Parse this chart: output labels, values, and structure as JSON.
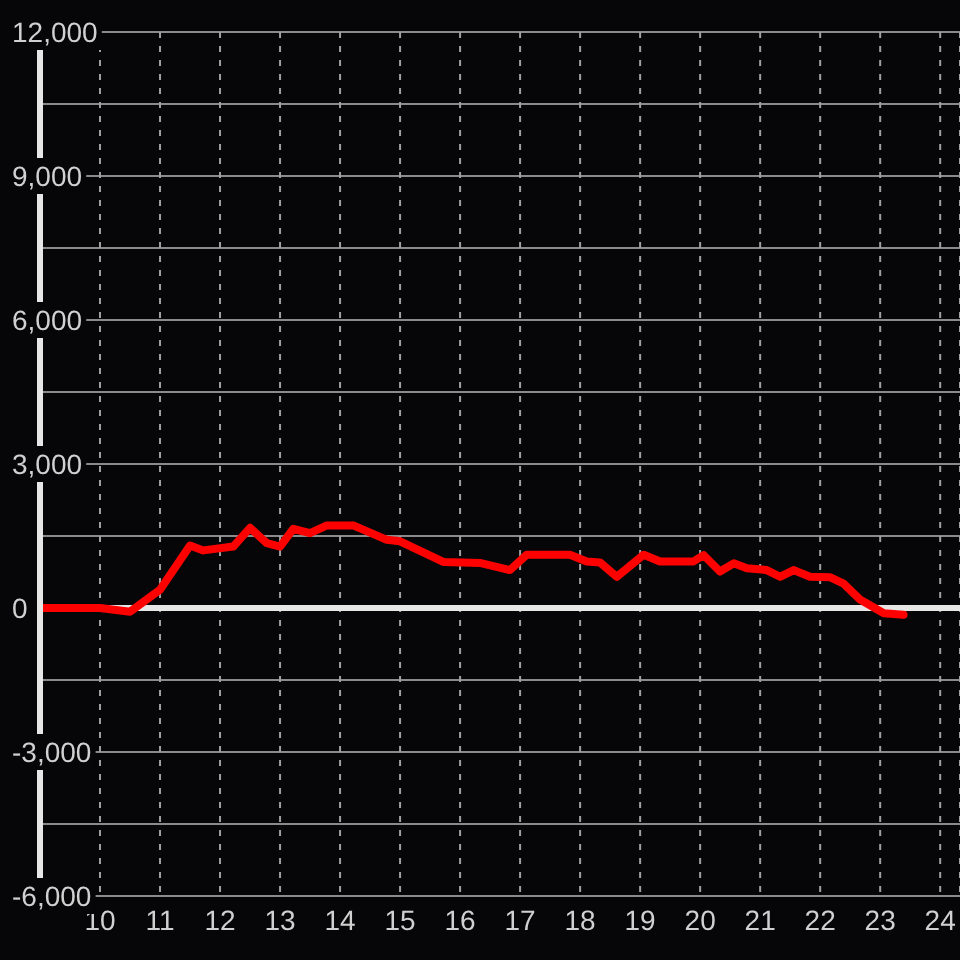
{
  "chart_data": {
    "type": "line",
    "x": [
      9,
      10,
      10.5,
      11,
      11.5,
      11.72,
      12.22,
      12.5,
      12.78,
      13,
      13.22,
      13.5,
      13.78,
      14.22,
      14.78,
      15,
      15.72,
      16.33,
      16.83,
      17.11,
      17.83,
      18.11,
      18.33,
      18.61,
      19.06,
      19.33,
      19.89,
      20.06,
      20.33,
      20.56,
      20.78,
      21.11,
      21.33,
      21.56,
      21.83,
      22.17,
      22.39,
      22.67,
      23.06,
      23.39
    ],
    "series": [
      {
        "color": "#ff0000",
        "values": [
          0,
          0,
          -80,
          380,
          1300,
          1200,
          1280,
          1670,
          1350,
          1280,
          1650,
          1560,
          1720,
          1720,
          1420,
          1390,
          960,
          940,
          790,
          1110,
          1110,
          970,
          950,
          650,
          1110,
          970,
          970,
          1100,
          760,
          930,
          830,
          790,
          650,
          790,
          650,
          640,
          510,
          170,
          -110,
          -140
        ]
      }
    ],
    "xlim": [
      9,
      24.33
    ],
    "xticks": [
      10,
      11,
      12,
      13,
      14,
      15,
      16,
      17,
      18,
      19,
      20,
      21,
      22,
      23,
      24
    ],
    "ylim": [
      -6000,
      12000
    ],
    "yticks": [
      {
        "value": -6000,
        "label": "-6,000"
      },
      {
        "value": -4500,
        "label": null
      },
      {
        "value": -3000,
        "label": "-3,000"
      },
      {
        "value": -1500,
        "label": null
      },
      0,
      {
        "value": 1500,
        "label": null
      },
      {
        "value": 3000,
        "label": "3,000"
      },
      {
        "value": 4500,
        "label": null
      },
      {
        "value": 6000,
        "label": "6,000"
      },
      {
        "value": 7500,
        "label": null
      },
      {
        "value": 9000,
        "label": "9,000"
      },
      {
        "value": 10500,
        "label": null
      },
      {
        "value": 12000,
        "label": "12,000"
      }
    ],
    "grid": true,
    "ref_lines": [
      {
        "axis": "y",
        "value": 0,
        "color": "#e6e6e6"
      }
    ],
    "marker": "none",
    "line_style": "solid"
  }
}
